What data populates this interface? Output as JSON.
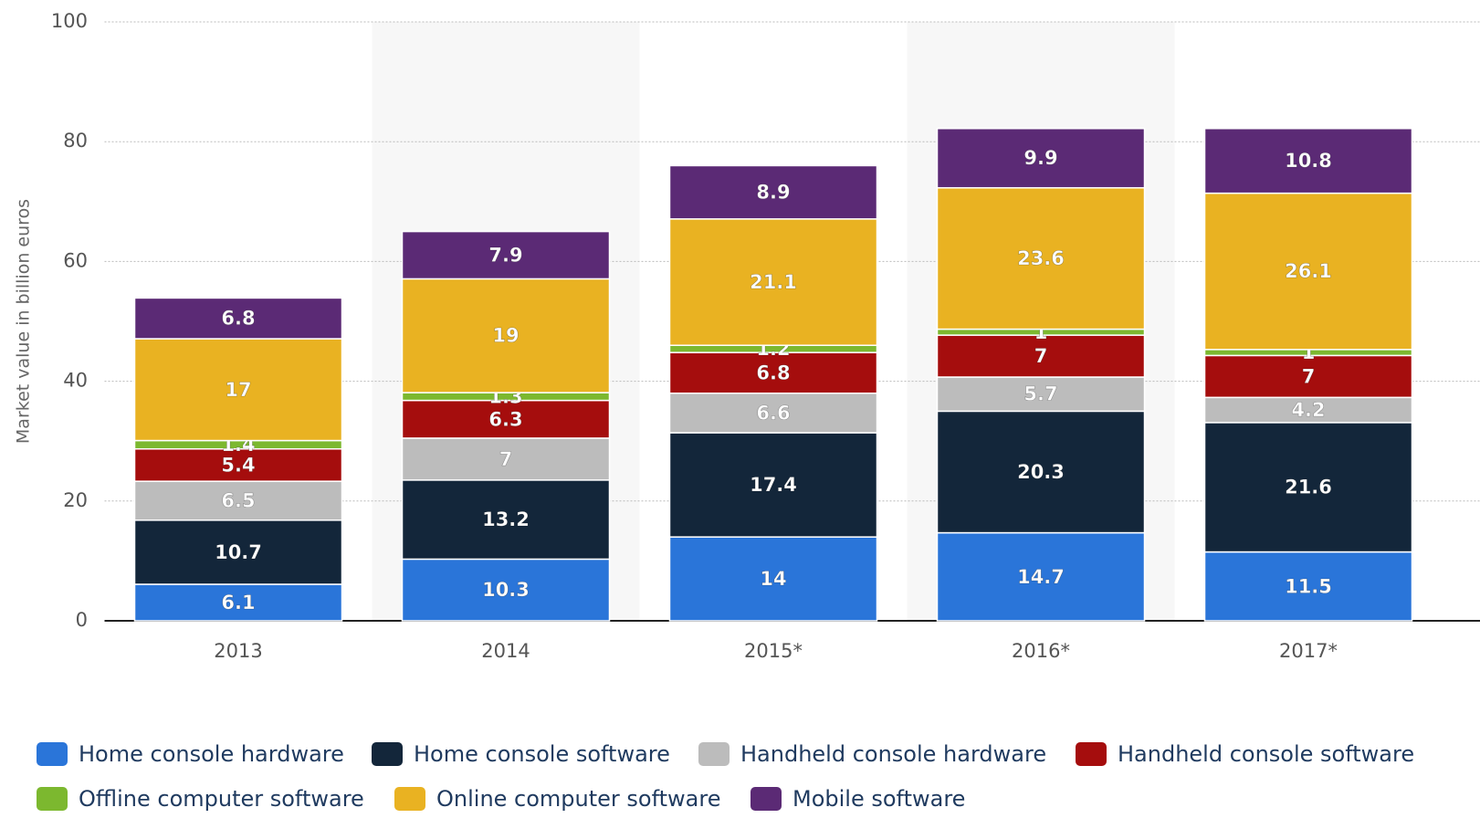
{
  "chart_data": {
    "type": "stacked_bar",
    "y_label": "Market value in billion euros",
    "categories": [
      "2013",
      "2014",
      "2015*",
      "2016*",
      "2017*"
    ],
    "series": [
      {
        "name": "Home console hardware",
        "color": "#2a75d9",
        "values": [
          6.1,
          10.3,
          14,
          14.7,
          11.5
        ]
      },
      {
        "name": "Home console software",
        "color": "#13263a",
        "values": [
          10.7,
          13.2,
          17.4,
          20.3,
          21.6
        ]
      },
      {
        "name": "Handheld console hardware",
        "color": "#bcbcbc",
        "values": [
          6.5,
          7,
          6.6,
          5.7,
          4.2
        ]
      },
      {
        "name": "Handheld console software",
        "color": "#a50d0d",
        "values": [
          5.4,
          6.3,
          6.8,
          7,
          7
        ]
      },
      {
        "name": "Offline computer software",
        "color": "#7cb82f",
        "values": [
          1.4,
          1.3,
          1.2,
          1,
          1
        ]
      },
      {
        "name": "Online computer software",
        "color": "#e9b222",
        "values": [
          17,
          19,
          21.1,
          23.6,
          26.1
        ]
      },
      {
        "name": "Mobile software",
        "color": "#5b2a75",
        "values": [
          6.8,
          7.9,
          8.9,
          9.9,
          10.8
        ]
      }
    ],
    "ylim": [
      0,
      100
    ],
    "yticks": [
      0,
      20,
      40,
      60,
      80,
      100
    ],
    "grid": true,
    "legend": "bottom"
  }
}
